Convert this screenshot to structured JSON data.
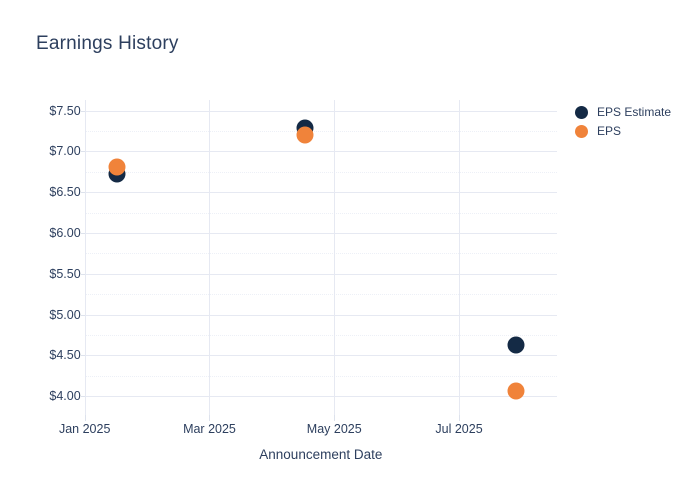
{
  "page": {
    "background": "#ffffff"
  },
  "chart_data": {
    "type": "scatter",
    "title": "Earnings History",
    "xlabel": "Announcement Date",
    "ylabel": "",
    "grid": true,
    "legend_position": "right-top",
    "colors": {
      "text": "#2d3f5e",
      "grid_major": "#e6e9f2",
      "grid_minor": "#edf0f7"
    },
    "x_ticks": [
      {
        "label": "Jan 2025",
        "month_offset": 0
      },
      {
        "label": "Mar 2025",
        "month_offset": 2
      },
      {
        "label": "May 2025",
        "month_offset": 4
      },
      {
        "label": "Jul 2025",
        "month_offset": 6
      }
    ],
    "x_range_months": [
      0,
      7.57
    ],
    "y_ticks": [
      {
        "label": "$7.50",
        "value": 7.5
      },
      {
        "label": "$7.00",
        "value": 7.0
      },
      {
        "label": "$6.50",
        "value": 6.5
      },
      {
        "label": "$6.00",
        "value": 6.0
      },
      {
        "label": "$5.50",
        "value": 5.5
      },
      {
        "label": "$5.00",
        "value": 5.0
      },
      {
        "label": "$4.50",
        "value": 4.5
      },
      {
        "label": "$4.00",
        "value": 4.0
      }
    ],
    "y_minor_ticks": [
      7.25,
      6.75,
      6.25,
      5.75,
      5.25,
      4.75,
      4.25
    ],
    "y_range": [
      3.77,
      7.63
    ],
    "series": [
      {
        "name": "EPS Estimate",
        "color": "#142a45",
        "points": [
          {
            "date": "2025-01-17",
            "value": 6.72
          },
          {
            "date": "2025-04-17",
            "value": 7.29
          },
          {
            "date": "2025-07-29",
            "value": 4.63
          }
        ]
      },
      {
        "name": "EPS",
        "color": "#f0833a",
        "points": [
          {
            "date": "2025-01-17",
            "value": 6.81
          },
          {
            "date": "2025-04-17",
            "value": 7.2
          },
          {
            "date": "2025-07-29",
            "value": 4.07
          }
        ]
      }
    ]
  }
}
